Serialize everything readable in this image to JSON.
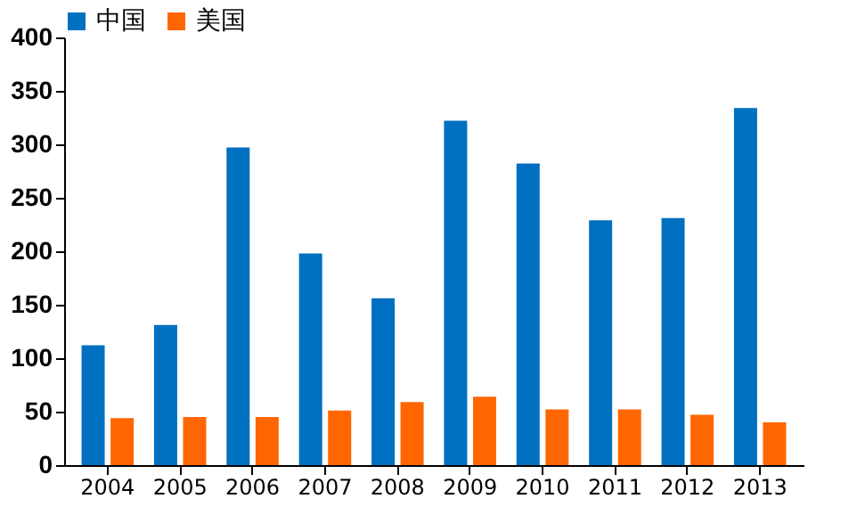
{
  "chart_data": {
    "type": "bar",
    "categories": [
      "2004",
      "2005",
      "2006",
      "2007",
      "2008",
      "2009",
      "2010",
      "2011",
      "2012",
      "2013"
    ],
    "series": [
      {
        "name": "中国",
        "color": "#0070c0",
        "values": [
          112,
          131,
          297,
          198,
          156,
          322,
          282,
          229,
          231,
          334
        ]
      },
      {
        "name": "美国",
        "color": "#ff6600",
        "values": [
          44,
          45,
          45,
          51,
          59,
          64,
          52,
          52,
          47,
          40
        ]
      }
    ],
    "ylim": [
      0,
      400
    ],
    "yticks": [
      0,
      50,
      100,
      150,
      200,
      250,
      300,
      350,
      400
    ],
    "grid": false,
    "legend": "top"
  }
}
